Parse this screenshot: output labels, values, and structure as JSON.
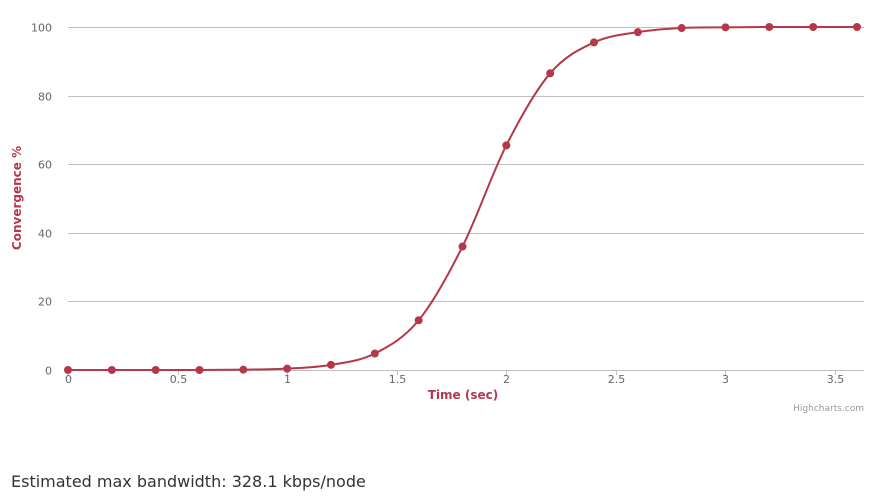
{
  "chart_data": {
    "type": "line",
    "xlabel": "Time (sec)",
    "ylabel": "Convergence %",
    "xlim": [
      0,
      3.6
    ],
    "ylim": [
      0,
      100
    ],
    "x_ticks": [
      0,
      0.5,
      1,
      1.5,
      2,
      2.5,
      3,
      3.5
    ],
    "y_ticks": [
      0,
      20,
      40,
      60,
      80,
      100
    ],
    "grid": "horizontal",
    "legend": "none",
    "color": "#b5384a",
    "series": [
      {
        "x": [
          0,
          0.2,
          0.4,
          0.6,
          0.8,
          1.0,
          1.2,
          1.4,
          1.6,
          1.8,
          2.0,
          2.2,
          2.4,
          2.6,
          2.8,
          3.0,
          3.2,
          3.4,
          3.6
        ],
        "values": [
          0,
          0,
          0,
          0,
          0.1,
          0.4,
          1.5,
          4.8,
          14.5,
          36,
          65.5,
          86.5,
          95.5,
          98.5,
          99.7,
          99.9,
          100,
          100,
          100
        ]
      }
    ],
    "credits": "Highcharts.com"
  },
  "footer": {
    "bandwidth_text": "Estimated max bandwidth: 328.1 kbps/node"
  }
}
